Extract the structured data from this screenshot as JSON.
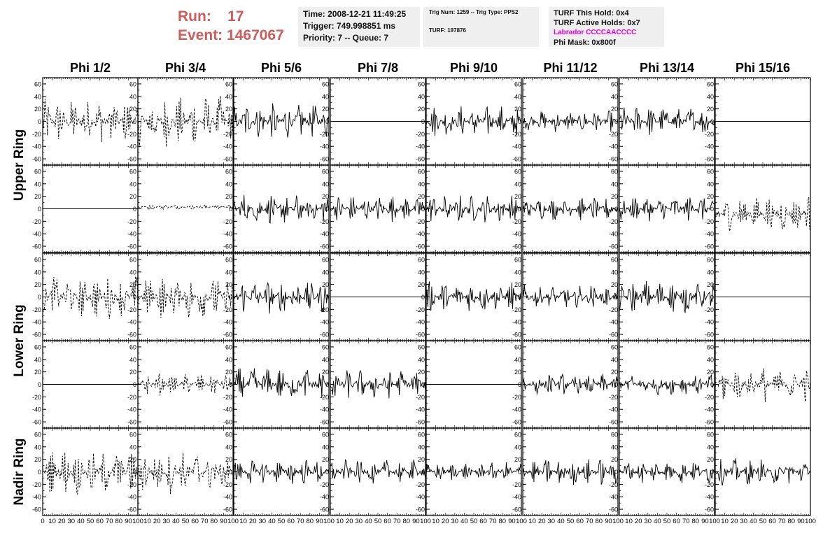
{
  "header": {
    "run_label": "Run:",
    "run_value": "17",
    "event_label": "Event:",
    "event_value": "1467067"
  },
  "info_boxes": {
    "time_line": "Time: 2008-12-21 11:49:25",
    "trigger_line": "Trigger: 749.998851 ms",
    "priority_line": "Priority: 7 -- Queue: 7",
    "trig_num_line": "Trig Num: 1259 -- Trig Type: PPS2",
    "turf_line": "TURF: 197876",
    "turf_hold_line": "TURF This Hold: 0x4",
    "turf_active_line": "TURF Active Holds: 0x7",
    "labrador_line": "Labrador CCCCAACCCC",
    "phi_mask_line": "Phi Mask: 0x800f"
  },
  "colors": {
    "run_text": "#cd5c5c",
    "labrador_text": "#e000e0",
    "info_bg": "#efefef"
  },
  "chart_data": {
    "type": "line",
    "title": "",
    "column_labels": [
      "Phi 1/2",
      "Phi 3/4",
      "Phi 5/6",
      "Phi 7/8",
      "Phi 9/10",
      "Phi 11/12",
      "Phi 13/14",
      "Phi 15/16"
    ],
    "ring_labels": [
      "Upper Ring",
      "Lower Ring",
      "Nadir Ring"
    ],
    "row_ring_index": [
      0,
      0,
      1,
      1,
      2
    ],
    "x_range": [
      0,
      100
    ],
    "y_range": [
      -70,
      70
    ],
    "y_ticks": [
      60,
      40,
      20,
      0,
      -20,
      -40,
      -60
    ],
    "x_tick_labels": [
      "0",
      "10",
      "20",
      "30",
      "40",
      "50",
      "60",
      "70",
      "80",
      "90",
      "100"
    ],
    "panel_description_legend": {
      "s": "solid waveform",
      "d": "dashed waveform",
      "f": "flat channel at 0"
    },
    "panel_styles": [
      [
        "d",
        "d",
        "s",
        "f",
        "s",
        "s",
        "s",
        "f"
      ],
      [
        "f",
        "d",
        "s",
        "s",
        "s",
        "s",
        "s",
        "d"
      ],
      [
        "d",
        "d",
        "s",
        "f",
        "s",
        "s",
        "s",
        "f"
      ],
      [
        "f",
        "d",
        "s",
        "s",
        "s",
        "s",
        "s",
        "d"
      ],
      [
        "d",
        "d",
        "s",
        "s",
        "s",
        "s",
        "s",
        "s"
      ]
    ],
    "panel_amplitudes": [
      [
        38,
        42,
        30,
        0,
        26,
        18,
        25,
        0
      ],
      [
        0,
        4,
        26,
        22,
        24,
        20,
        22,
        30
      ],
      [
        36,
        38,
        28,
        0,
        26,
        20,
        28,
        0
      ],
      [
        0,
        18,
        28,
        24,
        0,
        18,
        18,
        30
      ],
      [
        38,
        36,
        22,
        20,
        16,
        22,
        20,
        22
      ]
    ],
    "panel_offsets": [
      [
        0,
        0,
        0,
        0,
        0,
        0,
        0,
        0
      ],
      [
        0,
        3,
        0,
        0,
        0,
        0,
        0,
        -8
      ],
      [
        0,
        0,
        0,
        0,
        0,
        0,
        0,
        0
      ],
      [
        0,
        0,
        0,
        0,
        0,
        0,
        0,
        0
      ],
      [
        0,
        0,
        0,
        0,
        0,
        0,
        0,
        0
      ]
    ]
  }
}
